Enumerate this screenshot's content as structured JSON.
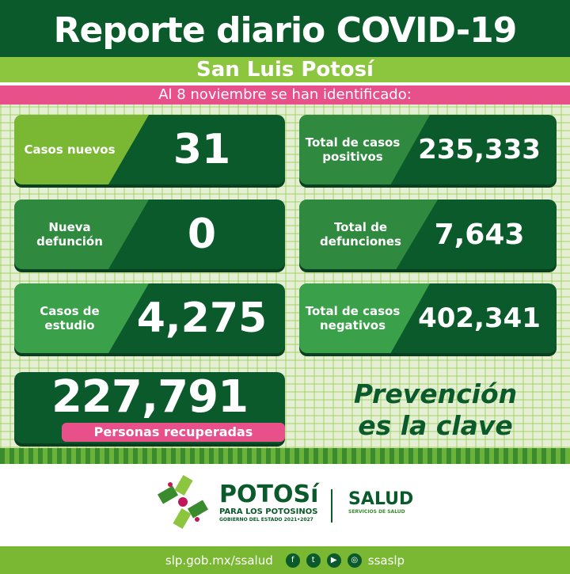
{
  "header": {
    "title": "Reporte diario COVID-19",
    "subtitle": "San Luis Potosí",
    "date_line": "Al 8 noviembre se han identificado:"
  },
  "colors": {
    "dark_green": "#0b5a2b",
    "light_green": "#8cc63f",
    "pink": "#e8508a"
  },
  "cards": [
    {
      "label": "Casos nuevos",
      "value": "31",
      "color": "#7ab833"
    },
    {
      "label": "Total de casos positivos",
      "value": "235,333",
      "color": "#2f8a3f"
    },
    {
      "label": "Nueva defunción",
      "value": "0",
      "color": "#2f8a3f"
    },
    {
      "label": "Total de defunciones",
      "value": "7,643",
      "color": "#2f8a3f"
    },
    {
      "label": "Casos de estudio",
      "value": "4,275",
      "color": "#3aa04a"
    },
    {
      "label": "Total de casos negativos",
      "value": "402,341",
      "color": "#3aa04a"
    }
  ],
  "recovered": {
    "value": "227,791",
    "label": "Personas recuperadas"
  },
  "slogan": {
    "line1": "Prevención",
    "line2": "es la clave"
  },
  "logos": {
    "potosi": "POTOSí",
    "potosi_tagline": "PARA LOS POTOSINOS",
    "potosi_gov": "GOBIERNO DEL ESTADO 2021•2027",
    "salud": "SALUD",
    "salud_sub": "SERVICIOS DE SALUD"
  },
  "footer": {
    "url": "slp.gob.mx/ssalud",
    "handle": "ssaslp",
    "icons": [
      "facebook-icon",
      "twitter-icon",
      "youtube-icon",
      "instagram-icon"
    ]
  }
}
